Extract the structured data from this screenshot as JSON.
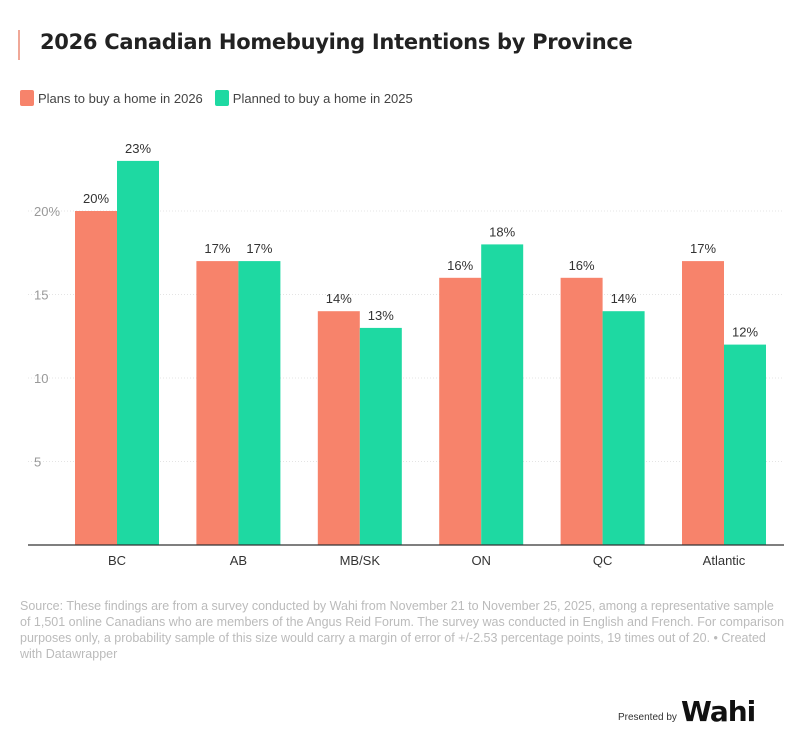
{
  "header": {
    "title": "2026 Canadian Homebuying Intentions by Province"
  },
  "footer": {
    "note": "Source: These findings are from a survey conducted by Wahi from November 21 to November 25, 2025, among a representative sample of 1,501 online Canadians who are members of the Angus Reid Forum. The survey was conducted in English and French. For comparison purposes only, a probability sample of this size would carry a margin of error of +/-2.53 percentage points, 19 times out of 20. • Created with Datawrapper",
    "presented_by": "Presented by",
    "logo_text": "Wahi"
  },
  "chart_data": {
    "type": "bar",
    "title": "2026 Canadian Homebuying Intentions by Province",
    "categories": [
      "BC",
      "AB",
      "MB/SK",
      "ON",
      "QC",
      "Atlantic"
    ],
    "series": [
      {
        "name": "Plans to buy a home in 2026",
        "color": "#f7836b",
        "values": [
          20,
          17,
          14,
          16,
          16,
          17
        ],
        "labels": [
          "20%",
          "17%",
          "14%",
          "16%",
          "16%",
          "17%"
        ]
      },
      {
        "name": "Planned to buy a home in 2025",
        "color": "#1ed9a2",
        "values": [
          23,
          17,
          13,
          18,
          14,
          12
        ],
        "labels": [
          "23%",
          "17%",
          "13%",
          "18%",
          "14%",
          "12%"
        ]
      }
    ],
    "yticks": [
      5,
      10,
      15,
      20
    ],
    "ytick_labels": [
      "5",
      "10",
      "15",
      "20%"
    ],
    "ylim": [
      0,
      25
    ],
    "grid": true,
    "legend": "top-left",
    "xlabel": "",
    "ylabel": ""
  }
}
